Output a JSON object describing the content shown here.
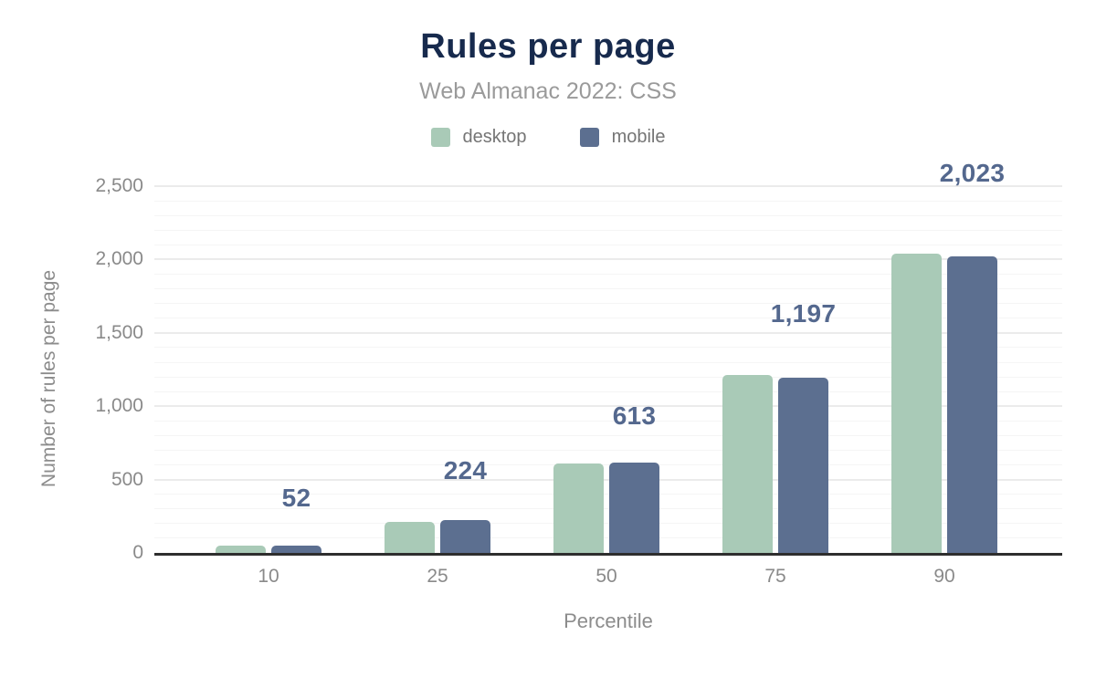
{
  "figure": {
    "title": "Rules per page",
    "subtitle": "Web Almanac 2022: CSS"
  },
  "chart_data": {
    "type": "bar",
    "title": "Rules per page",
    "subtitle": "Web Almanac 2022: CSS",
    "xlabel": "Percentile",
    "ylabel": "Number of rules per page",
    "categories": [
      "10",
      "25",
      "50",
      "75",
      "90"
    ],
    "series": [
      {
        "name": "desktop",
        "color": "#a9cab7",
        "values": [
          48,
          210,
          612,
          1210,
          2040
        ]
      },
      {
        "name": "mobile",
        "color": "#5c6f90",
        "values": [
          52,
          224,
          613,
          1197,
          2023
        ]
      }
    ],
    "data_labels": {
      "series": "mobile",
      "labels": [
        "52",
        "224",
        "613",
        "1,197",
        "2,023"
      ],
      "color": "#54688e"
    },
    "ylim": [
      0,
      2500
    ],
    "yticks": [
      {
        "value": 0,
        "label": "0"
      },
      {
        "value": 500,
        "label": "500"
      },
      {
        "value": 1000,
        "label": "1,000"
      },
      {
        "value": 1500,
        "label": "1,500"
      },
      {
        "value": 2000,
        "label": "2,000"
      },
      {
        "value": 2500,
        "label": "2,500"
      }
    ],
    "grid": {
      "minor_step": 100,
      "major_step": 500,
      "major_color": "#ebebeb",
      "minor_color": "#f5f5f5"
    },
    "legend_position": "top",
    "axis_line_color": "#2e2e2e",
    "title_color": "#172a4d",
    "subtitle_color": "#9a9a9a",
    "tick_color": "#8a8a8a",
    "background_color": "#ffffff"
  }
}
